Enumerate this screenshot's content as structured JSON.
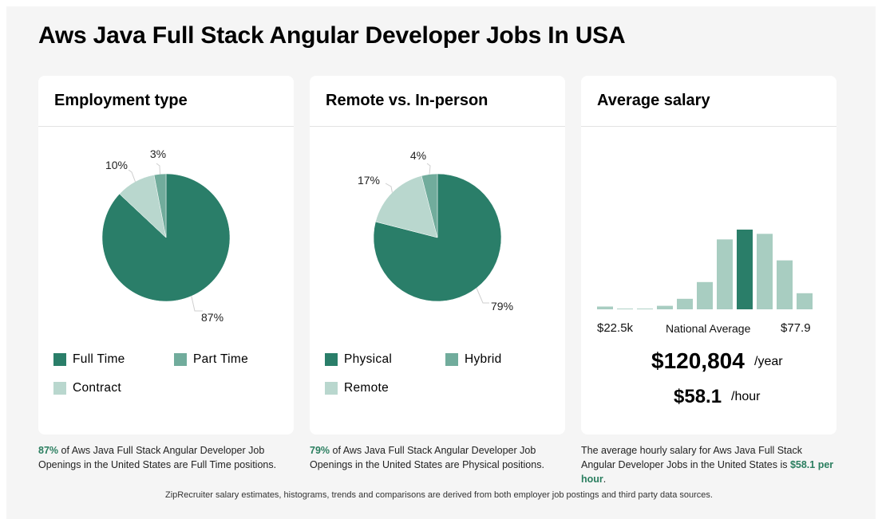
{
  "page": {
    "title": "Aws Java Full Stack Angular Developer Jobs In USA"
  },
  "colors": {
    "dark": "#2a7e69",
    "mid": "#71ac9c",
    "light": "#b9d7ce",
    "hist_light": "#a8cdc1",
    "accent_text": "#2a7e5f"
  },
  "employment": {
    "title": "Employment type",
    "legend": [
      "Full Time",
      "Part Time",
      "Contract"
    ],
    "caption_pct": "87%",
    "caption_text": " of Aws Java Full Stack Angular Developer Job Openings in the United States are Full Time positions."
  },
  "remote": {
    "title": "Remote vs. In-person",
    "legend": [
      "Physical",
      "Hybrid",
      "Remote"
    ],
    "caption_pct": "79%",
    "caption_text": " of Aws Java Full Stack Angular Developer Job Openings in the United States are Physical positions."
  },
  "salary": {
    "title": "Average salary",
    "min_label": "$22.5k",
    "mid_label": "National Average",
    "max_label": "$77.9",
    "yearly": "$120,804",
    "yearly_unit": "/year",
    "hourly": "$58.1",
    "hourly_unit": "/hour",
    "caption_text": "The average hourly salary for Aws Java Full Stack Angular Developer Jobs in the United States is ",
    "caption_hl": "$58.1 per hour",
    "caption_end": "."
  },
  "footer": {
    "text": "ZipRecruiter salary estimates, histograms, trends and comparisons are derived from both employer job postings and third party data sources."
  },
  "chart_data": [
    {
      "type": "pie",
      "title": "Employment type",
      "labels": [
        "Full Time",
        "Part Time",
        "Contract"
      ],
      "values": [
        87,
        3,
        10
      ],
      "value_labels": [
        "87%",
        "3%",
        "10%"
      ]
    },
    {
      "type": "pie",
      "title": "Remote vs. In-person",
      "labels": [
        "Physical",
        "Hybrid",
        "Remote"
      ],
      "values": [
        79,
        4,
        17
      ],
      "value_labels": [
        "79%",
        "4%",
        "17%"
      ]
    },
    {
      "type": "bar",
      "title": "Average salary",
      "values": [
        2,
        0.5,
        0.5,
        2.5,
        7.5,
        19.5,
        50,
        57,
        54,
        35,
        11.5
      ],
      "highlight_index": 7,
      "ylim": [
        0,
        60
      ]
    }
  ]
}
